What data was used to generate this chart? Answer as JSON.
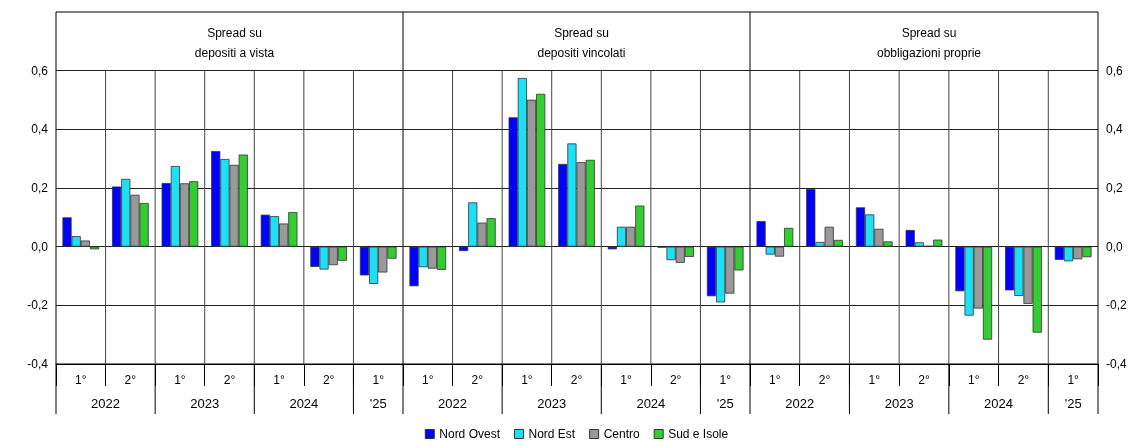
{
  "chart_data": [
    {
      "type": "bar",
      "title": "Spread su\ndepositi a vista",
      "categories": [
        "1°",
        "2°",
        "1°",
        "2°",
        "1°",
        "2°",
        "1°"
      ],
      "annotations": [
        "2022",
        "2023",
        "2024",
        "'25"
      ],
      "ylim": [
        -0.4,
        0.8
      ],
      "yticks": [
        {
          "value": -0.4,
          "label": "-0,4"
        },
        {
          "value": -0.2,
          "label": "-0,2"
        },
        {
          "value": 0,
          "label": "0,0"
        },
        {
          "value": 0.2,
          "label": "0,2"
        },
        {
          "value": 0.4,
          "label": "0,4"
        },
        {
          "value": 0.6,
          "label": "0,6"
        }
      ],
      "grid": true,
      "legend": false,
      "series": [
        {
          "color": "#0000ff",
          "values": [
            0.1,
            0.205,
            0.217,
            0.326,
            0.109,
            -0.069,
            -0.098
          ]
        },
        {
          "color": "#1ee0f5",
          "values": [
            0.036,
            0.231,
            0.275,
            0.299,
            0.104,
            -0.078,
            -0.127
          ]
        },
        {
          "color": "#999999",
          "values": [
            0.021,
            0.177,
            0.216,
            0.279,
            0.079,
            -0.063,
            -0.088
          ]
        },
        {
          "color": "#33cc33",
          "values": [
            -0.009,
            0.149,
            0.223,
            0.314,
            0.118,
            -0.048,
            -0.041
          ]
        }
      ]
    },
    {
      "type": "bar",
      "title": "Spread su\ndepositi vincolati",
      "categories": [
        "1°",
        "2°",
        "1°",
        "2°",
        "1°",
        "2°",
        "1°"
      ],
      "annotations": [
        "2022",
        "2023",
        "2024",
        "'25"
      ],
      "ylim": [
        -0.4,
        0.8
      ],
      "yticks": [
        -0.4,
        -0.2,
        0,
        0.2,
        0.4,
        0.6
      ],
      "tick_labels": "x",
      "grid": true,
      "legend": "bottom",
      "series": [
        {
          "name": "Nord Ovest",
          "color": "#0000ff",
          "values": [
            -0.135,
            -0.015,
            0.441,
            0.282,
            -0.009,
            -0.003,
            -0.169
          ]
        },
        {
          "name": "Nord Est",
          "color": "#1ee0f5",
          "values": [
            -0.07,
            0.151,
            0.575,
            0.352,
            0.068,
            -0.046,
            -0.19
          ]
        },
        {
          "name": "Centro",
          "color": "#999999",
          "values": [
            -0.075,
            0.082,
            0.501,
            0.288,
            0.068,
            -0.055,
            -0.16
          ]
        },
        {
          "name": "Sud e Isole",
          "color": "#33cc33",
          "values": [
            -0.079,
            0.097,
            0.521,
            0.296,
            0.14,
            -0.035,
            -0.081
          ]
        }
      ]
    },
    {
      "type": "bar",
      "title": "Spread su\nobbligazioni proprie",
      "categories": [
        "1°",
        "2°",
        "1°",
        "2°",
        "1°",
        "2°",
        "1°"
      ],
      "annotations": [
        "2022",
        "2023",
        "2024",
        "'25"
      ],
      "y2lim": [
        -0.4,
        0.8
      ],
      "y2ticks": [
        {
          "value": -0.4,
          "label": "-0,4"
        },
        {
          "value": -0.2,
          "label": "-0,2"
        },
        {
          "value": 0,
          "label": "0,0"
        },
        {
          "value": 0.2,
          "label": "0,2"
        },
        {
          "value": 0.4,
          "label": "0,4"
        },
        {
          "value": 0.6,
          "label": "0,6"
        }
      ],
      "grid": true,
      "legend": false,
      "series": [
        {
          "color": "#0000ff",
          "axis": "y2",
          "values": [
            0.087,
            0.197,
            0.134,
            0.057,
            -0.152,
            -0.149,
            -0.045
          ]
        },
        {
          "color": "#1ee0f5",
          "axis": "y2",
          "values": [
            -0.027,
            0.016,
            0.11,
            0.015,
            -0.235,
            -0.168,
            -0.05
          ]
        },
        {
          "color": "#999999",
          "axis": "y2",
          "values": [
            -0.034,
            0.068,
            0.061,
            0.003,
            -0.211,
            -0.195,
            -0.043
          ]
        },
        {
          "color": "#33cc33",
          "axis": "y2",
          "values": [
            0.064,
            0.023,
            0.018,
            0.024,
            -0.317,
            -0.293,
            -0.036
          ]
        }
      ]
    }
  ]
}
